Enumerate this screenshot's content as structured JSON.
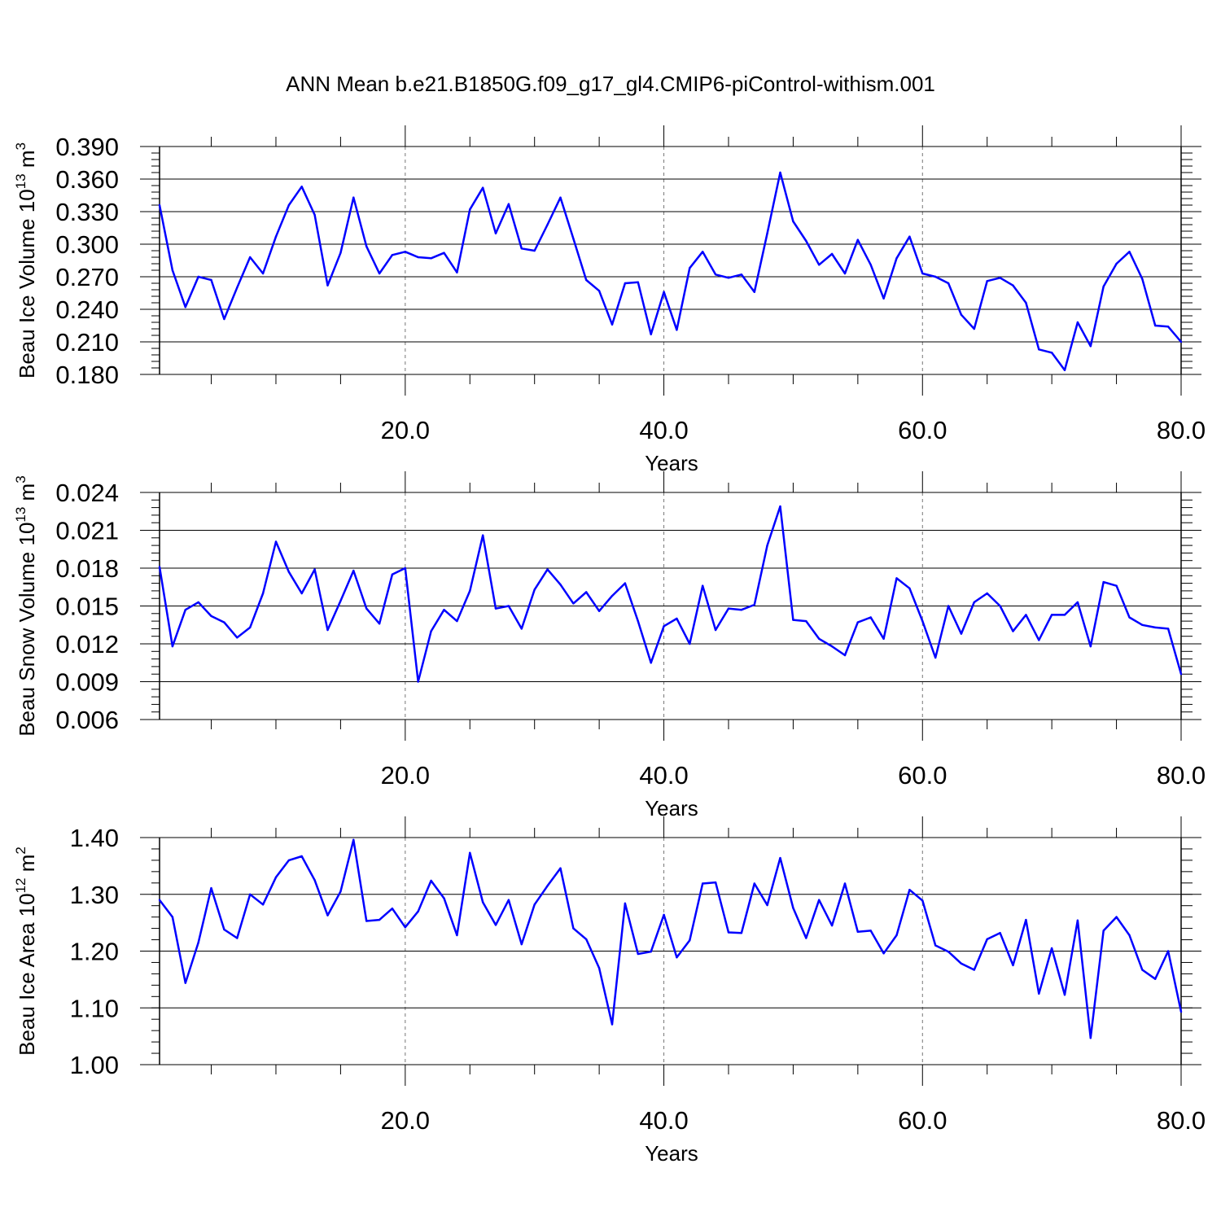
{
  "title": "ANN Mean b.e21.B1850G.f09_g17_gl4.CMIP6-piControl-withism.001",
  "line_color": "#0000ff",
  "chart_data": [
    {
      "type": "line",
      "ylabel_text": "Beau Ice Volume 10",
      "ylabel_exp": "13",
      "ylabel_unit": " m",
      "ylabel_unit_exp": "3",
      "xlabel": "Years",
      "xlim": [
        1,
        80
      ],
      "ylim": [
        0.18,
        0.39
      ],
      "xticks": [
        "20.0",
        "40.0",
        "60.0",
        "80.0"
      ],
      "yticks": [
        "0.390",
        "0.360",
        "0.330",
        "0.300",
        "0.270",
        "0.240",
        "0.210",
        "0.180"
      ],
      "grid": "dashed vertical at major x ticks",
      "x": [
        1,
        2,
        3,
        4,
        5,
        6,
        7,
        8,
        9,
        10,
        11,
        12,
        13,
        14,
        15,
        16,
        17,
        18,
        19,
        20,
        21,
        22,
        23,
        24,
        25,
        26,
        27,
        28,
        29,
        30,
        31,
        32,
        33,
        34,
        35,
        36,
        37,
        38,
        39,
        40,
        41,
        42,
        43,
        44,
        45,
        46,
        47,
        48,
        49,
        50,
        51,
        52,
        53,
        54,
        55,
        56,
        57,
        58,
        59,
        60,
        61,
        62,
        63,
        64,
        65,
        66,
        67,
        68,
        69,
        70,
        71,
        72,
        73,
        74,
        75,
        76,
        77,
        78,
        79,
        80
      ],
      "values": [
        0.336,
        0.276,
        0.242,
        0.27,
        0.267,
        0.231,
        0.26,
        0.288,
        0.273,
        0.307,
        0.336,
        0.353,
        0.327,
        0.262,
        0.292,
        0.343,
        0.298,
        0.273,
        0.29,
        0.293,
        0.288,
        0.287,
        0.292,
        0.274,
        0.332,
        0.352,
        0.31,
        0.337,
        0.296,
        0.294,
        0.318,
        0.343,
        0.305,
        0.267,
        0.257,
        0.226,
        0.264,
        0.265,
        0.217,
        0.256,
        0.221,
        0.278,
        0.293,
        0.272,
        0.269,
        0.272,
        0.256,
        0.31,
        0.366,
        0.321,
        0.303,
        0.281,
        0.291,
        0.273,
        0.304,
        0.281,
        0.25,
        0.287,
        0.307,
        0.273,
        0.27,
        0.264,
        0.235,
        0.222,
        0.266,
        0.269,
        0.262,
        0.246,
        0.203,
        0.2,
        0.184,
        0.228,
        0.206,
        0.261,
        0.282,
        0.293,
        0.268,
        0.225,
        0.224,
        0.21
      ]
    },
    {
      "type": "line",
      "ylabel_text": "Beau Snow Volume 10",
      "ylabel_exp": "13",
      "ylabel_unit": " m",
      "ylabel_unit_exp": "3",
      "xlabel": "Years",
      "xlim": [
        1,
        80
      ],
      "ylim": [
        0.006,
        0.024
      ],
      "xticks": [
        "20.0",
        "40.0",
        "60.0",
        "80.0"
      ],
      "yticks": [
        "0.024",
        "0.021",
        "0.018",
        "0.015",
        "0.012",
        "0.009",
        "0.006"
      ],
      "grid": "dashed vertical at major x ticks",
      "x": [
        1,
        2,
        3,
        4,
        5,
        6,
        7,
        8,
        9,
        10,
        11,
        12,
        13,
        14,
        15,
        16,
        17,
        18,
        19,
        20,
        21,
        22,
        23,
        24,
        25,
        26,
        27,
        28,
        29,
        30,
        31,
        32,
        33,
        34,
        35,
        36,
        37,
        38,
        39,
        40,
        41,
        42,
        43,
        44,
        45,
        46,
        47,
        48,
        49,
        50,
        51,
        52,
        53,
        54,
        55,
        56,
        57,
        58,
        59,
        60,
        61,
        62,
        63,
        64,
        65,
        66,
        67,
        68,
        69,
        70,
        71,
        72,
        73,
        74,
        75,
        76,
        77,
        78,
        79,
        80
      ],
      "values": [
        0.0181,
        0.0118,
        0.0147,
        0.0153,
        0.0142,
        0.0137,
        0.0125,
        0.0133,
        0.016,
        0.0201,
        0.0177,
        0.016,
        0.0179,
        0.0131,
        0.0154,
        0.0178,
        0.0148,
        0.0136,
        0.0175,
        0.018,
        0.009,
        0.013,
        0.0147,
        0.0138,
        0.0162,
        0.0206,
        0.0148,
        0.015,
        0.0132,
        0.0163,
        0.0179,
        0.0167,
        0.0152,
        0.0161,
        0.0146,
        0.0158,
        0.0168,
        0.0138,
        0.0105,
        0.0134,
        0.014,
        0.012,
        0.0166,
        0.0131,
        0.0148,
        0.0147,
        0.0151,
        0.0198,
        0.0229,
        0.0139,
        0.0138,
        0.0124,
        0.0118,
        0.0111,
        0.0137,
        0.0141,
        0.0124,
        0.0172,
        0.0164,
        0.0138,
        0.0109,
        0.015,
        0.0128,
        0.0153,
        0.016,
        0.015,
        0.013,
        0.0143,
        0.0123,
        0.0143,
        0.0143,
        0.0153,
        0.0118,
        0.0169,
        0.0166,
        0.0141,
        0.0135,
        0.0133,
        0.0132,
        0.0096
      ]
    },
    {
      "type": "line",
      "ylabel_text": "Beau Ice Area 10",
      "ylabel_exp": "12",
      "ylabel_unit": " m",
      "ylabel_unit_exp": "2",
      "xlabel": "Years",
      "xlim": [
        1,
        80
      ],
      "ylim": [
        1.0,
        1.4
      ],
      "xticks": [
        "20.0",
        "40.0",
        "60.0",
        "80.0"
      ],
      "yticks": [
        "1.40",
        "1.30",
        "1.20",
        "1.10",
        "1.00"
      ],
      "grid": "dashed vertical at major x ticks",
      "x": [
        1,
        2,
        3,
        4,
        5,
        6,
        7,
        8,
        9,
        10,
        11,
        12,
        13,
        14,
        15,
        16,
        17,
        18,
        19,
        20,
        21,
        22,
        23,
        24,
        25,
        26,
        27,
        28,
        29,
        30,
        31,
        32,
        33,
        34,
        35,
        36,
        37,
        38,
        39,
        40,
        41,
        42,
        43,
        44,
        45,
        46,
        47,
        48,
        49,
        50,
        51,
        52,
        53,
        54,
        55,
        56,
        57,
        58,
        59,
        60,
        61,
        62,
        63,
        64,
        65,
        66,
        67,
        68,
        69,
        70,
        71,
        72,
        73,
        74,
        75,
        76,
        77,
        78,
        79,
        80
      ],
      "values": [
        1.29,
        1.26,
        1.144,
        1.215,
        1.311,
        1.238,
        1.223,
        1.3,
        1.282,
        1.33,
        1.36,
        1.367,
        1.325,
        1.263,
        1.305,
        1.396,
        1.253,
        1.255,
        1.275,
        1.242,
        1.27,
        1.324,
        1.293,
        1.228,
        1.373,
        1.286,
        1.246,
        1.29,
        1.212,
        1.282,
        1.315,
        1.346,
        1.24,
        1.221,
        1.17,
        1.071,
        1.284,
        1.195,
        1.199,
        1.264,
        1.189,
        1.219,
        1.319,
        1.321,
        1.233,
        1.232,
        1.319,
        1.281,
        1.364,
        1.276,
        1.223,
        1.29,
        1.245,
        1.319,
        1.234,
        1.236,
        1.196,
        1.228,
        1.308,
        1.289,
        1.21,
        1.199,
        1.178,
        1.167,
        1.221,
        1.232,
        1.175,
        1.255,
        1.125,
        1.205,
        1.123,
        1.254,
        1.047,
        1.236,
        1.26,
        1.228,
        1.167,
        1.151,
        1.2,
        1.093
      ]
    }
  ]
}
